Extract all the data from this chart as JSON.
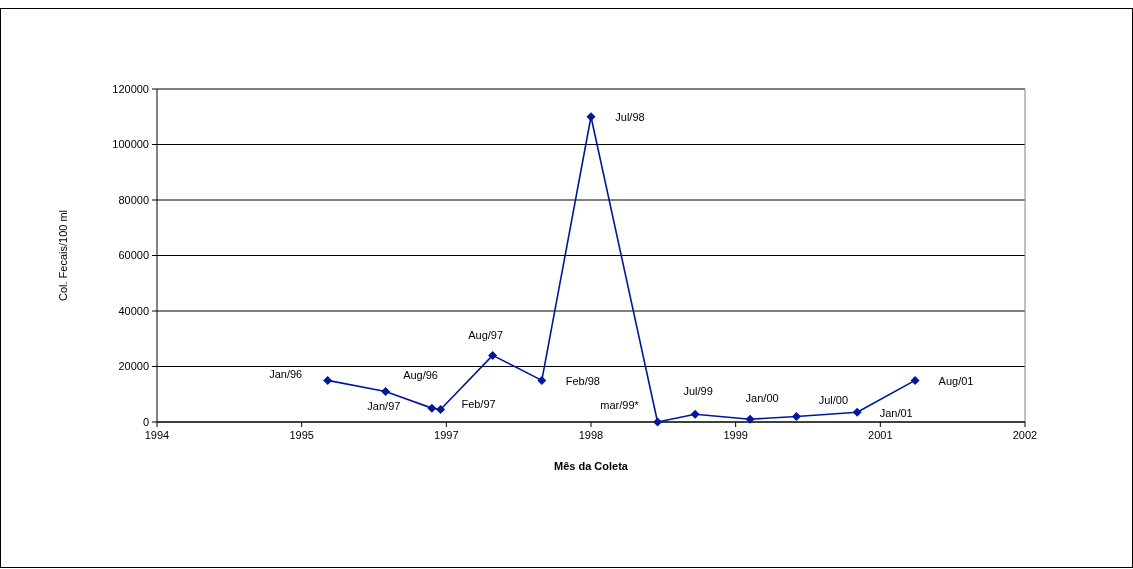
{
  "chart_data": {
    "type": "line",
    "xlabel": "Mês da Coleta",
    "ylabel": "Col. Fecais/100 ml",
    "x": [
      "1996-01-26",
      "1996-08-13",
      "1997-01-20",
      "1997-02-19",
      "1997-08-18",
      "1998-02-04",
      "1998-07-24",
      "1999-03-11",
      "1999-07-19",
      "2000-01-25",
      "2000-07-03",
      "2001-01-29",
      "2001-08-17"
    ],
    "series": [
      {
        "color": "#00189c",
        "values": [
          15000,
          11000,
          5000,
          4500,
          24000,
          15000,
          110000,
          0,
          2800,
          1000,
          2000,
          3500,
          15000
        ]
      }
    ],
    "xlim": [
      "1994-06-15",
      "2002-09-01"
    ],
    "xticks": [
      {
        "value": "1994-06-15",
        "label": "1994"
      },
      {
        "value": "1995-10-28",
        "label": "1995"
      },
      {
        "value": "1997-03-11",
        "label": "1997"
      },
      {
        "value": "1998-07-24",
        "label": "1998"
      },
      {
        "value": "1999-12-06",
        "label": "1999"
      },
      {
        "value": "2001-04-19",
        "label": "2001"
      },
      {
        "value": "2002-09-01",
        "label": "2002"
      }
    ],
    "ylim": [
      0,
      120000
    ],
    "yticks": [
      0,
      20000,
      40000,
      60000,
      80000,
      100000,
      120000
    ],
    "grid": "y",
    "marker": "diamond",
    "line_style": "solid",
    "annotations": [
      {
        "text": "Jan/96",
        "x": "1996-01-26",
        "y": 15000
      },
      {
        "text": "Aug/96",
        "x": "1996-08-13",
        "y": 11000
      },
      {
        "text": "Jan/97",
        "x": "1997-01-20",
        "y": 5000
      },
      {
        "text": "Feb/97",
        "x": "1997-02-19",
        "y": 4500
      },
      {
        "text": "Aug/97",
        "x": "1997-08-18",
        "y": 24000
      },
      {
        "text": "Feb/98",
        "x": "1998-02-04",
        "y": 15000
      },
      {
        "text": "Jul/98",
        "x": "1998-07-24",
        "y": 110000
      },
      {
        "text": "mar/99*",
        "x": "1999-03-11",
        "y": 0
      },
      {
        "text": "Jul/99",
        "x": "1999-07-19",
        "y": 2800
      },
      {
        "text": "Jan/00",
        "x": "2000-01-25",
        "y": 1000
      },
      {
        "text": "Jul/00",
        "x": "2000-07-03",
        "y": 2000
      },
      {
        "text": "Jan/01",
        "x": "2001-01-29",
        "y": 3500
      },
      {
        "text": "Aug/01",
        "x": "2001-08-17",
        "y": 15000
      }
    ]
  }
}
